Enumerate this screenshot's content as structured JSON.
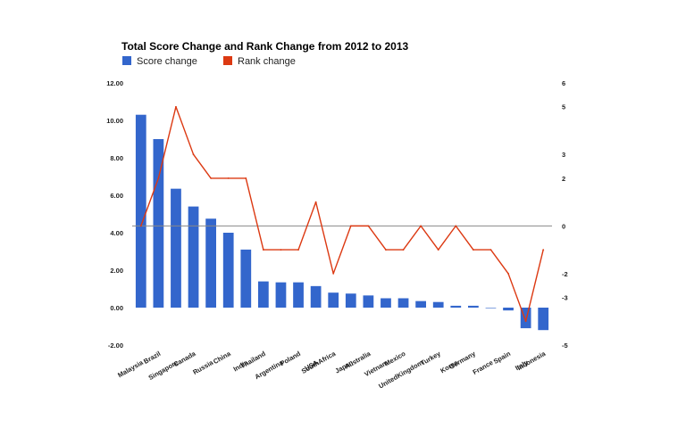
{
  "chart_data": {
    "type": "bar",
    "combo": "bar+line",
    "title": "Total Score Change and Rank Change from 2012 to 2013",
    "legend": {
      "position": "top-left"
    },
    "categories": [
      "Malaysia",
      "Brazil",
      "Singapore",
      "Canada",
      "Russia",
      "China",
      "India",
      "Thailand",
      "Argentina",
      "Poland",
      "USA",
      "SouthAfrica",
      "Japan",
      "Australia",
      "Vietnam",
      "Mexico",
      "UnitedKingdom",
      "Turkey",
      "Korea",
      "Germany",
      "France",
      "Spain",
      "Italy",
      "Indonesia"
    ],
    "series": [
      {
        "name": "Score change",
        "type": "bar",
        "axis": "left",
        "color": "#3366cc",
        "values": [
          10.3,
          9.0,
          6.35,
          5.4,
          4.75,
          4.0,
          3.1,
          1.4,
          1.35,
          1.35,
          1.15,
          0.8,
          0.75,
          0.65,
          0.5,
          0.5,
          0.35,
          0.3,
          0.1,
          0.1,
          0.0,
          -0.15,
          -1.1,
          -1.2
        ]
      },
      {
        "name": "Rank change",
        "type": "line",
        "axis": "right",
        "color": "#dc3912",
        "values": [
          0,
          2,
          5,
          3,
          2,
          2,
          2,
          -1,
          -1,
          -1,
          1,
          -2,
          0,
          0,
          -1,
          -1,
          0,
          -1,
          0,
          -1,
          -1,
          -2,
          -4,
          -1
        ]
      }
    ],
    "left_axis": {
      "ylim": [
        -2,
        12
      ],
      "ticks": [
        12,
        10,
        8,
        6,
        4,
        2,
        0,
        -2
      ],
      "tick_labels": [
        "12.00",
        "10.00",
        "8.00",
        "6.00",
        "4.00",
        "2.00",
        "0.00",
        "-2.00"
      ]
    },
    "right_axis": {
      "ylim": [
        -5,
        6
      ],
      "ticks": [
        6,
        5,
        3,
        2,
        0,
        -2,
        -3,
        -5
      ],
      "tick_labels": [
        "6",
        "5",
        "3",
        "2",
        "0",
        "-2",
        "-3",
        "-5"
      ]
    },
    "baseline_color": "#888888"
  }
}
